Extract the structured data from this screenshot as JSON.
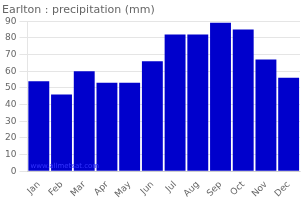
{
  "chart_data": {
    "type": "bar",
    "title": "Earlton : precipitation (mm)",
    "categories": [
      "Jan",
      "Feb",
      "Mar",
      "Apr",
      "May",
      "Jun",
      "Jul",
      "Aug",
      "Sep",
      "Oct",
      "Nov",
      "Dec"
    ],
    "values": [
      54,
      46,
      60,
      53,
      53,
      66,
      82,
      82,
      89,
      85,
      67,
      56
    ],
    "color": "#0000cc",
    "ylim": [
      0,
      90
    ],
    "yticks": [
      0,
      10,
      20,
      30,
      40,
      50,
      60,
      70,
      80,
      90
    ],
    "grid": "y",
    "annotation": {
      "text": "www.allmetsat.com",
      "color": "#3333ff"
    }
  }
}
